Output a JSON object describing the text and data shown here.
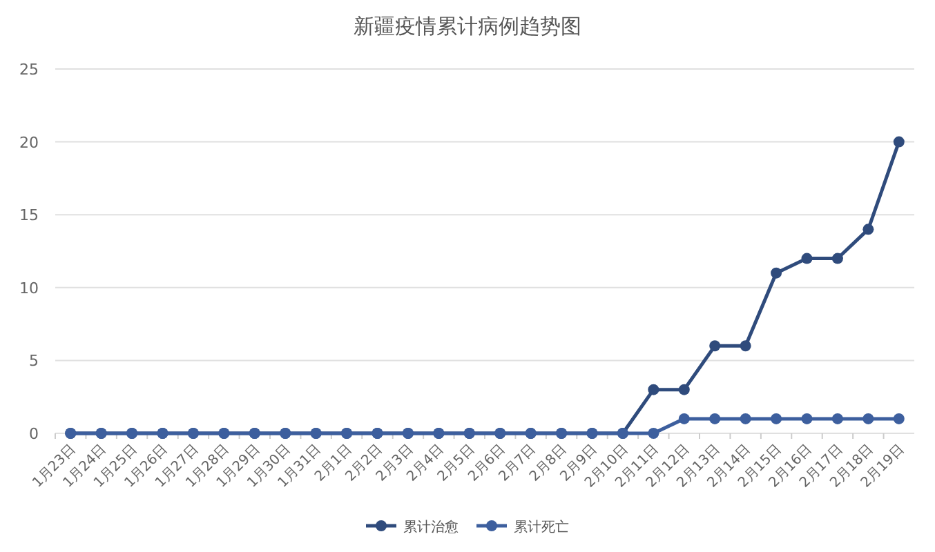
{
  "chart_data": {
    "type": "line",
    "title": "新疆疫情累计病例趋势图",
    "categories": [
      "1月23日",
      "1月24日",
      "1月25日",
      "1月26日",
      "1月27日",
      "1月28日",
      "1月29日",
      "1月30日",
      "1月31日",
      "2月1日",
      "2月2日",
      "2月3日",
      "2月4日",
      "2月5日",
      "2月6日",
      "2月7日",
      "2月8日",
      "2月9日",
      "2月10日",
      "2月11日",
      "2月12日",
      "2月13日",
      "2月14日",
      "2月15日",
      "2月16日",
      "2月17日",
      "2月18日",
      "2月19日"
    ],
    "series": [
      {
        "name": "累计治愈",
        "color": "#2f4b7c",
        "values": [
          0,
          0,
          0,
          0,
          0,
          0,
          0,
          0,
          0,
          0,
          0,
          0,
          0,
          0,
          0,
          0,
          0,
          0,
          0,
          3,
          3,
          6,
          6,
          11,
          12,
          12,
          14,
          20
        ]
      },
      {
        "name": "累计死亡",
        "color": "#3d5f9e",
        "values": [
          0,
          0,
          0,
          0,
          0,
          0,
          0,
          0,
          0,
          0,
          0,
          0,
          0,
          0,
          0,
          0,
          0,
          0,
          0,
          0,
          1,
          1,
          1,
          1,
          1,
          1,
          1,
          1
        ]
      }
    ],
    "ylim": [
      0,
      25
    ],
    "yticks": [
      0,
      5,
      10,
      15,
      20,
      25
    ],
    "grid": "y",
    "legend": "bottom",
    "marker": "circle",
    "line_style": "solid"
  }
}
